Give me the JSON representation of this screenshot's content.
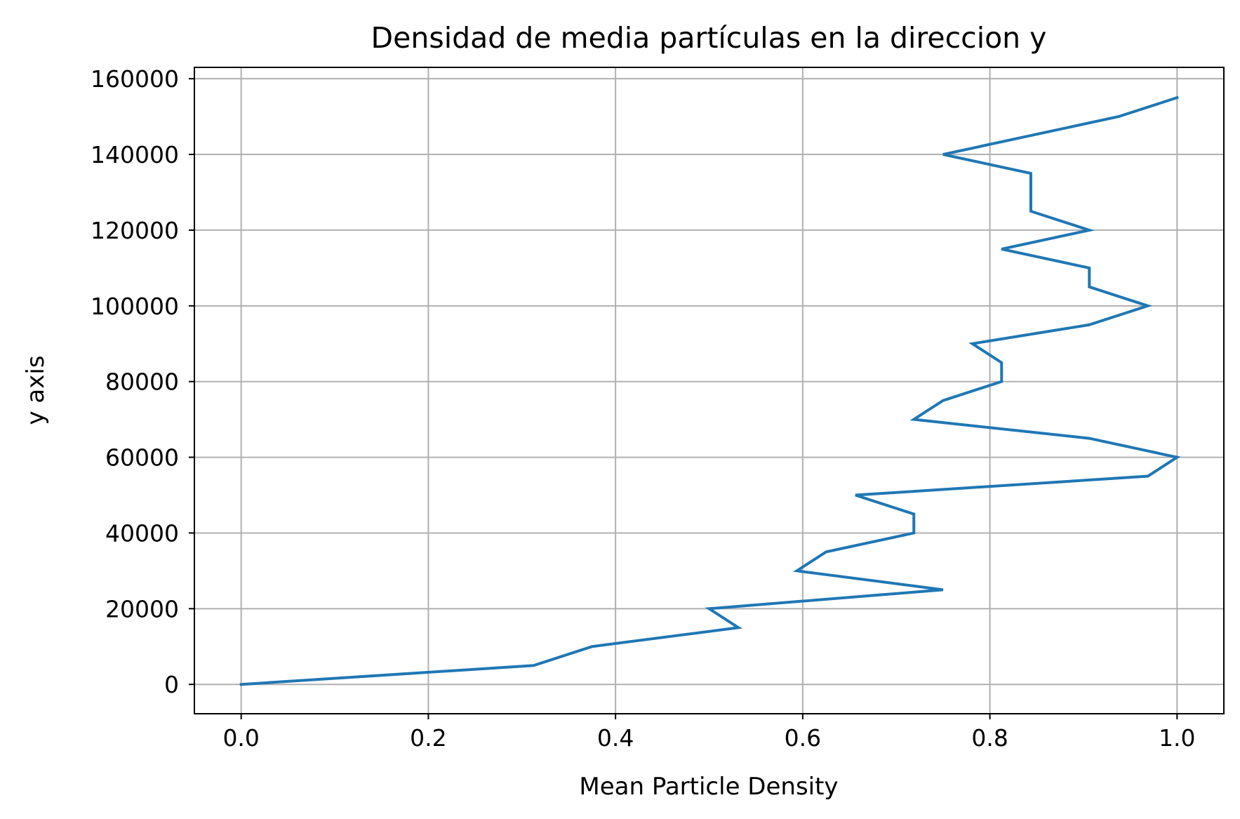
{
  "chart_data": {
    "type": "line",
    "title": "Densidad de media partículas en la direccion y",
    "xlabel": "Mean Particle Density",
    "ylabel": "y axis",
    "xlim": [
      -0.05,
      1.05
    ],
    "ylim": [
      -7750,
      163000
    ],
    "xticks": [
      0.0,
      0.2,
      0.4,
      0.6,
      0.8,
      1.0
    ],
    "xtick_labels": [
      "0.0",
      "0.2",
      "0.4",
      "0.6",
      "0.8",
      "1.0"
    ],
    "yticks": [
      0,
      20000,
      40000,
      60000,
      80000,
      100000,
      120000,
      140000,
      160000
    ],
    "ytick_labels": [
      "0",
      "20000",
      "40000",
      "60000",
      "80000",
      "100000",
      "120000",
      "140000",
      "160000"
    ],
    "grid": true,
    "series": [
      {
        "color": "#1f77b4",
        "x": [
          0.0,
          0.3125,
          0.375,
          0.53125,
          0.5,
          0.75,
          0.59375,
          0.625,
          0.71875,
          0.71875,
          0.65625,
          0.96875,
          1.0,
          0.90625,
          0.71875,
          0.75,
          0.8125,
          0.8125,
          0.78125,
          0.90625,
          0.96875,
          0.90625,
          0.90625,
          0.8125,
          0.90625,
          0.84375,
          0.84375,
          0.75,
          0.9375,
          1.0
        ],
        "y": [
          0,
          5000,
          10000,
          15000,
          20000,
          25000,
          30000,
          35000,
          40000,
          45000,
          50000,
          55000,
          60000,
          65000,
          70000,
          75000,
          80000,
          85000,
          90000,
          95000,
          100000,
          105000,
          110000,
          115000,
          120000,
          125000,
          135000,
          140000,
          150000,
          155000
        ]
      }
    ]
  }
}
